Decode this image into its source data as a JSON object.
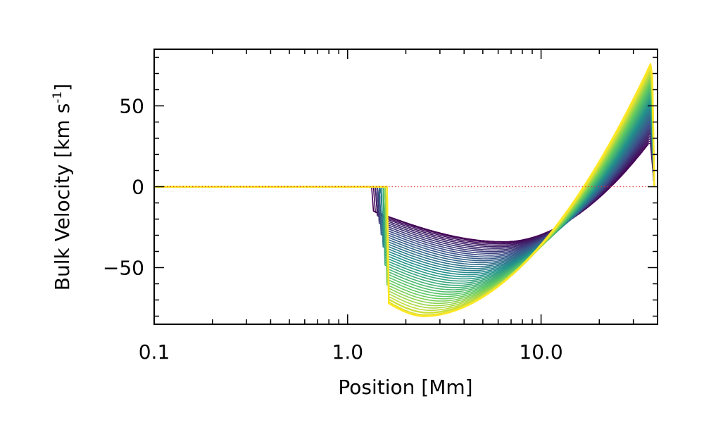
{
  "chart_data": {
    "type": "line",
    "title": "",
    "xlabel": "Position [Mm]",
    "ylabel_main": "Bulk Velocity [km s",
    "ylabel_sup": "-1",
    "ylabel_close": "]",
    "xscale": "log",
    "xlim": [
      0.1,
      40.0
    ],
    "ylim": [
      -85,
      85
    ],
    "x_ticks": [
      0.1,
      1.0,
      10.0
    ],
    "x_tick_labels": [
      "0.1",
      "1.0",
      "10.0"
    ],
    "y_ticks": [
      50,
      0,
      -50
    ],
    "y_tick_labels": [
      "50",
      "0",
      "−50"
    ],
    "reference_line": {
      "y": 0,
      "color": "#e03030",
      "style": "dotted"
    },
    "colormap": [
      "#440154",
      "#3b528b",
      "#21918c",
      "#5ec962",
      "#fde725"
    ],
    "series_count": 40,
    "series_profile": {
      "flat_until": 1.35,
      "drop_start_range": [
        1.35,
        1.62
      ],
      "early_trough": {
        "x": [
          1.6,
          2.5,
          6.5
        ],
        "y": [
          -15,
          -27,
          -34
        ]
      },
      "late_trough": {
        "x": [
          1.62,
          2.5
        ],
        "y": [
          -72,
          -80
        ]
      },
      "zero_crossing": 18.0,
      "peak": {
        "x": 37.5,
        "y_range": [
          28,
          78
        ]
      },
      "end_x": 38.5
    }
  }
}
